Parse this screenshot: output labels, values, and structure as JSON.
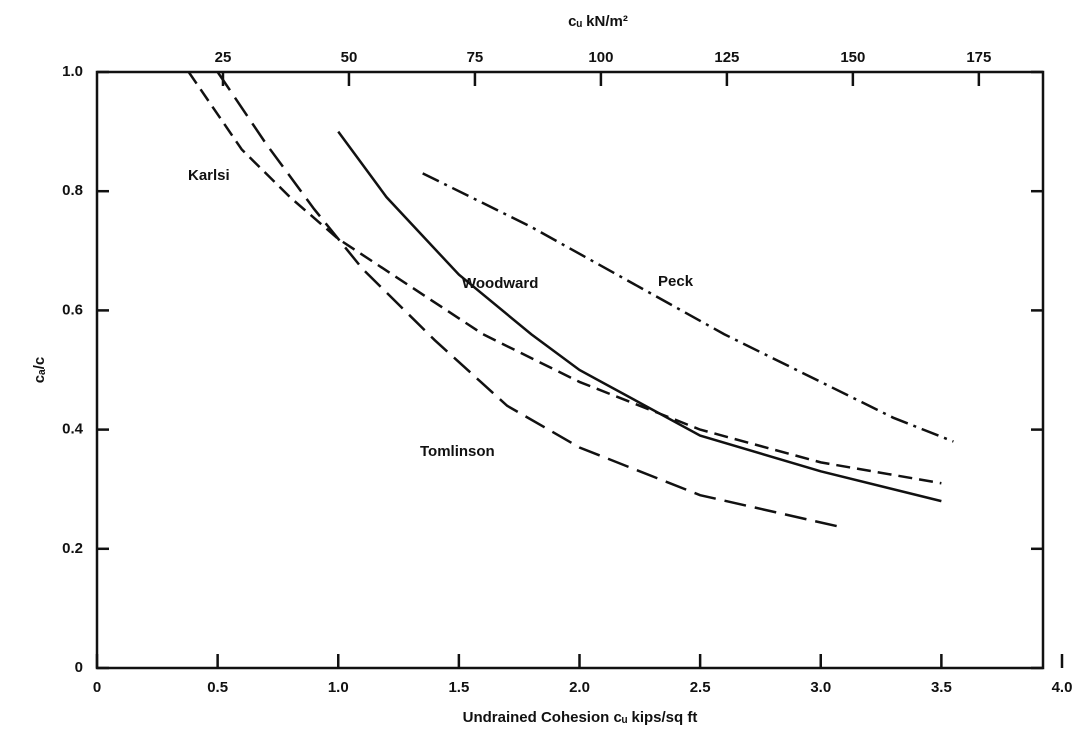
{
  "chart_data": {
    "type": "line",
    "title": "cᵤ kN/m²",
    "x_label": "Undrained Cohesion cᵤ kips/sq ft",
    "y_label": "cₐ/c",
    "xlim": [
      0,
      4
    ],
    "xticks": [
      0,
      0.5,
      {
        "value": 1,
        "label": "1.0"
      },
      1.5,
      {
        "value": 2,
        "label": "2.0"
      },
      2.5,
      {
        "value": 3,
        "label": "3.0"
      },
      3.5,
      {
        "value": 4,
        "label": "4.0"
      }
    ],
    "x2lim": [
      0,
      191.5
    ],
    "x2ticks": [
      25,
      50,
      75,
      100,
      125,
      150,
      175
    ],
    "ylim": [
      0,
      1
    ],
    "yticks": [
      0,
      0.2,
      0.4,
      0.6,
      0.8,
      {
        "value": 1,
        "label": "1.0"
      }
    ],
    "series": [
      {
        "name": "Karlsi",
        "color": "#111111",
        "dash": "dashed",
        "x": [
          0.38,
          0.6,
          0.8,
          1.0,
          1.3,
          1.6,
          2.0,
          2.5,
          3.0,
          3.5
        ],
        "values": [
          1.0,
          0.87,
          0.79,
          0.72,
          0.64,
          0.56,
          0.48,
          0.4,
          0.345,
          0.31
        ]
      },
      {
        "name": "Woodward",
        "color": "#111111",
        "dash": "solid",
        "x": [
          1.0,
          1.2,
          1.5,
          1.8,
          2.0,
          2.5,
          3.0,
          3.5
        ],
        "values": [
          0.9,
          0.79,
          0.66,
          0.56,
          0.5,
          0.39,
          0.33,
          0.28
        ]
      },
      {
        "name": "Peck",
        "color": "#111111",
        "dash": "dashdot",
        "x": [
          1.35,
          1.8,
          2.2,
          2.6,
          3.0,
          3.3,
          3.55
        ],
        "values": [
          0.83,
          0.74,
          0.65,
          0.56,
          0.48,
          0.42,
          0.38
        ]
      },
      {
        "name": "Tomlinson",
        "color": "#111111",
        "dash": "longdash",
        "x": [
          0.5,
          0.7,
          0.9,
          1.1,
          1.4,
          1.7,
          2.0,
          2.5,
          3.1
        ],
        "values": [
          1.0,
          0.88,
          0.77,
          0.67,
          0.55,
          0.44,
          0.37,
          0.29,
          0.235
        ]
      }
    ]
  }
}
